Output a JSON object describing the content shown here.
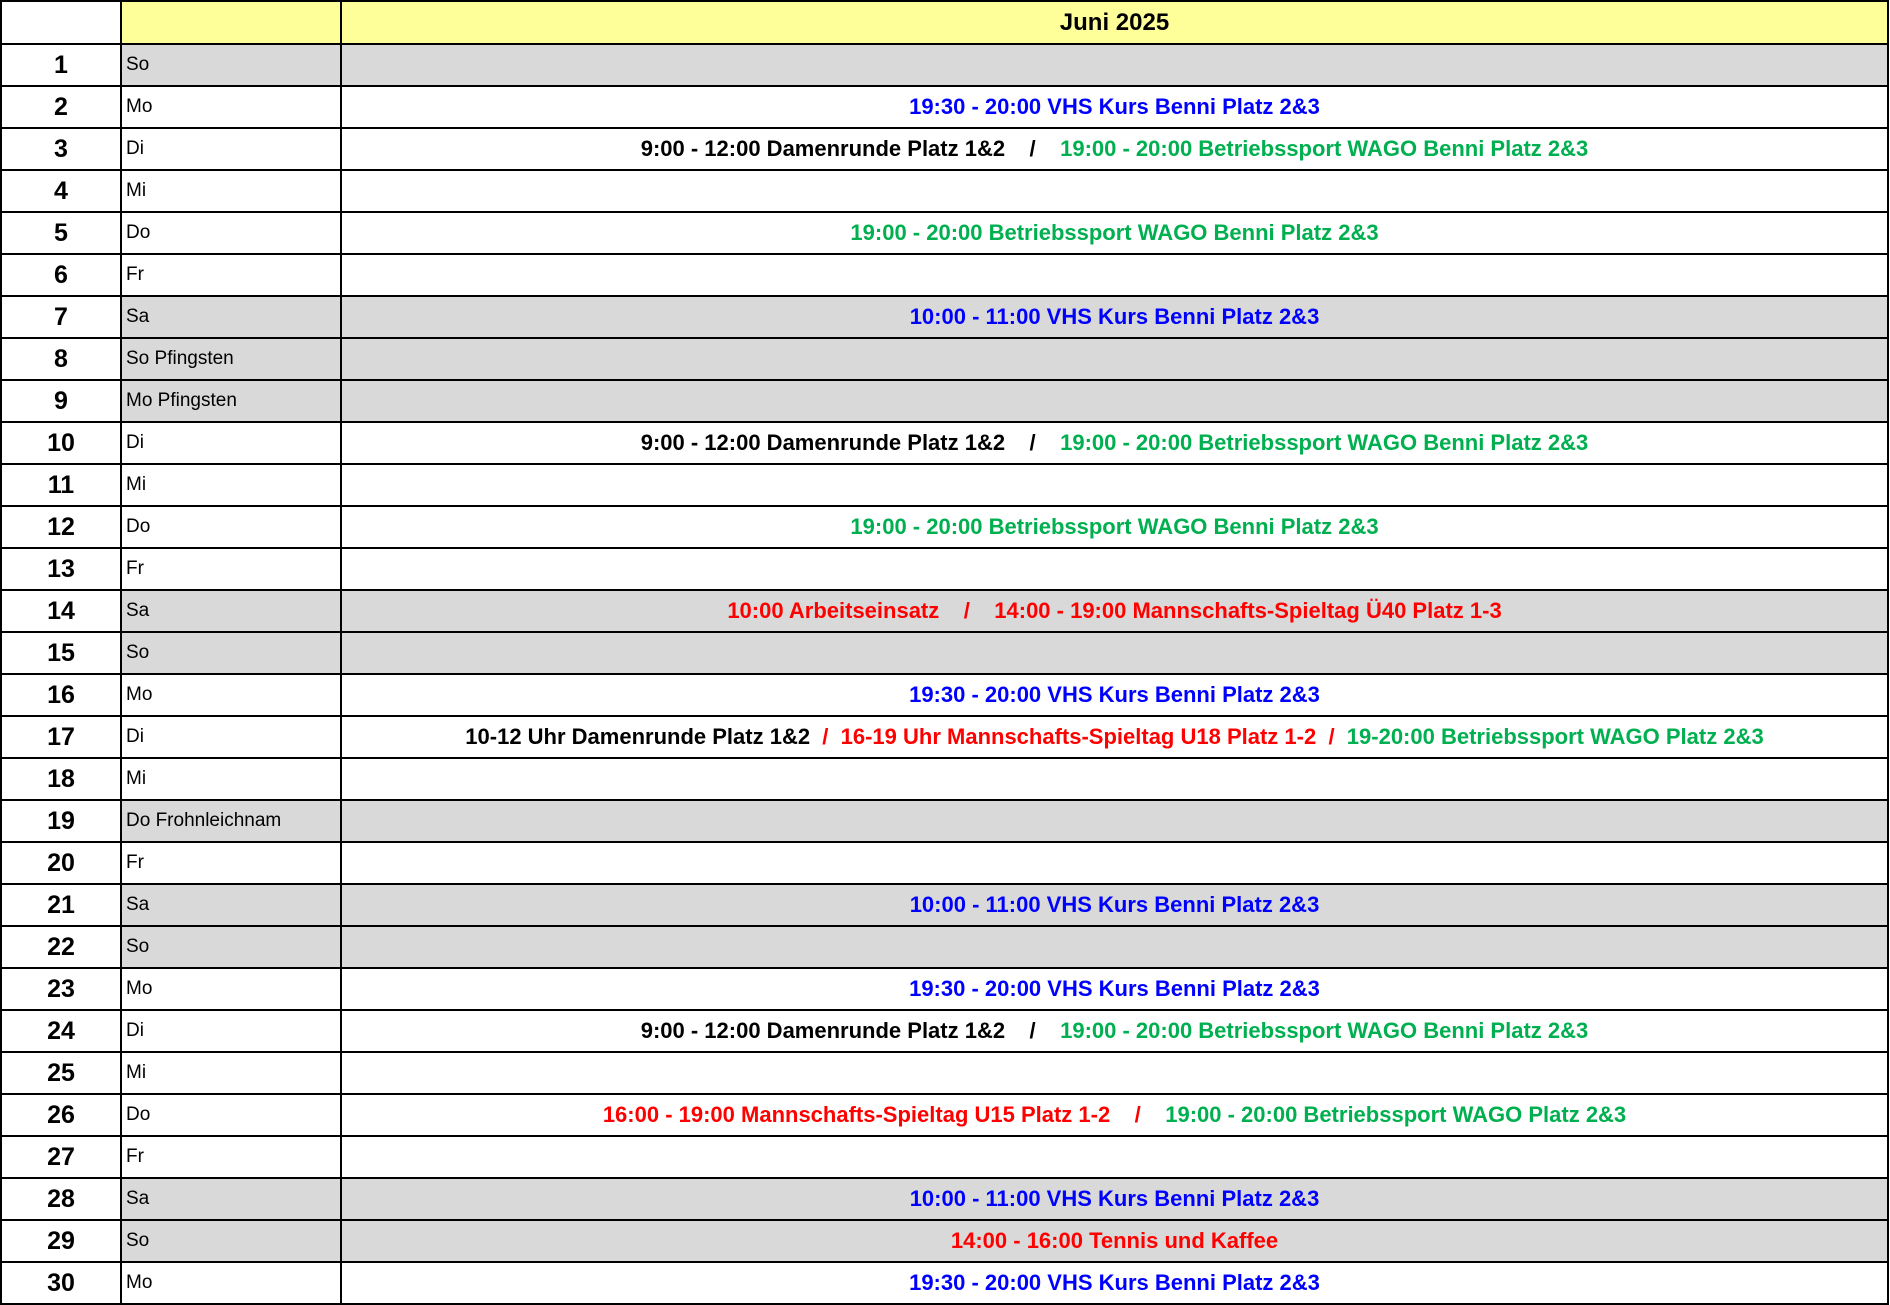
{
  "header": {
    "title": "Juni 2025"
  },
  "colors": {
    "black": "#000000",
    "blue": "#0000ff",
    "green": "#00b050",
    "red": "#ff0000",
    "weekend_fill": "#d9d9d9",
    "header_fill": "#ffff99"
  },
  "days": [
    {
      "num": "1",
      "day": "So",
      "gray": true,
      "segments": []
    },
    {
      "num": "2",
      "day": "Mo",
      "gray": false,
      "segments": [
        {
          "text": "19:30 - 20:00 VHS Kurs Benni Platz 2&3",
          "color": "blue"
        }
      ]
    },
    {
      "num": "3",
      "day": "Di",
      "gray": false,
      "segments": [
        {
          "text": "9:00 - 12:00 Damenrunde Platz 1&2    /    ",
          "color": "black"
        },
        {
          "text": "19:00 - 20:00 Betriebssport WAGO Benni Platz 2&3",
          "color": "green"
        }
      ]
    },
    {
      "num": "4",
      "day": "Mi",
      "gray": false,
      "segments": []
    },
    {
      "num": "5",
      "day": "Do",
      "gray": false,
      "segments": [
        {
          "text": "19:00 - 20:00 Betriebssport WAGO Benni Platz 2&3",
          "color": "green"
        }
      ]
    },
    {
      "num": "6",
      "day": "Fr",
      "gray": false,
      "segments": []
    },
    {
      "num": "7",
      "day": "Sa",
      "gray": true,
      "segments": [
        {
          "text": "10:00 - 11:00 VHS Kurs Benni Platz 2&3",
          "color": "blue"
        }
      ]
    },
    {
      "num": "8",
      "day": "So Pfingsten",
      "gray": true,
      "segments": []
    },
    {
      "num": "9",
      "day": "Mo Pfingsten",
      "gray": true,
      "segments": []
    },
    {
      "num": "10",
      "day": "Di",
      "gray": false,
      "segments": [
        {
          "text": "9:00 - 12:00 Damenrunde Platz 1&2    /    ",
          "color": "black"
        },
        {
          "text": "19:00 - 20:00 Betriebssport WAGO Benni Platz 2&3",
          "color": "green"
        }
      ]
    },
    {
      "num": "11",
      "day": "Mi",
      "gray": false,
      "segments": []
    },
    {
      "num": "12",
      "day": "Do",
      "gray": false,
      "segments": [
        {
          "text": "19:00 - 20:00 Betriebssport WAGO Benni Platz 2&3",
          "color": "green"
        }
      ]
    },
    {
      "num": "13",
      "day": "Fr",
      "gray": false,
      "segments": []
    },
    {
      "num": "14",
      "day": "Sa",
      "gray": true,
      "segments": [
        {
          "text": "10:00 Arbeitseinsatz    /    14:00 - 19:00 Mannschafts-Spieltag Ü40 Platz 1-3",
          "color": "red"
        }
      ]
    },
    {
      "num": "15",
      "day": "So",
      "gray": true,
      "segments": []
    },
    {
      "num": "16",
      "day": "Mo",
      "gray": false,
      "segments": [
        {
          "text": "19:30 - 20:00 VHS Kurs Benni Platz 2&3",
          "color": "blue"
        }
      ]
    },
    {
      "num": "17",
      "day": "Di",
      "gray": false,
      "segments": [
        {
          "text": "10-12 Uhr Damenrunde Platz 1&2",
          "color": "black"
        },
        {
          "text": "  /  16-19 Uhr Mannschafts-Spieltag U18 Platz 1-2  /  ",
          "color": "red"
        },
        {
          "text": "19-20:00 Betriebssport WAGO Platz 2&3",
          "color": "green"
        }
      ]
    },
    {
      "num": "18",
      "day": "Mi",
      "gray": false,
      "segments": []
    },
    {
      "num": "19",
      "day": "Do Frohnleichnam",
      "gray": true,
      "segments": []
    },
    {
      "num": "20",
      "day": "Fr",
      "gray": false,
      "segments": []
    },
    {
      "num": "21",
      "day": "Sa",
      "gray": true,
      "segments": [
        {
          "text": "10:00 - 11:00 VHS Kurs Benni Platz 2&3",
          "color": "blue"
        }
      ]
    },
    {
      "num": "22",
      "day": "So",
      "gray": true,
      "segments": []
    },
    {
      "num": "23",
      "day": "Mo",
      "gray": false,
      "segments": [
        {
          "text": "19:30 - 20:00 VHS Kurs Benni Platz 2&3",
          "color": "blue"
        }
      ]
    },
    {
      "num": "24",
      "day": "Di",
      "gray": false,
      "segments": [
        {
          "text": "9:00 - 12:00 Damenrunde Platz 1&2    /    ",
          "color": "black"
        },
        {
          "text": "19:00 - 20:00 Betriebssport WAGO Benni Platz 2&3",
          "color": "green"
        }
      ]
    },
    {
      "num": "25",
      "day": "Mi",
      "gray": false,
      "segments": []
    },
    {
      "num": "26",
      "day": "Do",
      "gray": false,
      "segments": [
        {
          "text": "16:00 - 19:00 Mannschafts-Spieltag U15 Platz 1-2    /    ",
          "color": "red"
        },
        {
          "text": "19:00 - 20:00 Betriebssport WAGO Platz 2&3",
          "color": "green"
        }
      ]
    },
    {
      "num": "27",
      "day": "Fr",
      "gray": false,
      "segments": []
    },
    {
      "num": "28",
      "day": "Sa",
      "gray": true,
      "segments": [
        {
          "text": "10:00 - 11:00 VHS Kurs Benni Platz 2&3",
          "color": "blue"
        }
      ]
    },
    {
      "num": "29",
      "day": "So",
      "gray": true,
      "segments": [
        {
          "text": "14:00 - 16:00 Tennis und Kaffee",
          "color": "red"
        }
      ]
    },
    {
      "num": "30",
      "day": "Mo",
      "gray": false,
      "segments": [
        {
          "text": "19:30 - 20:00 VHS Kurs Benni Platz 2&3",
          "color": "blue"
        }
      ]
    }
  ]
}
